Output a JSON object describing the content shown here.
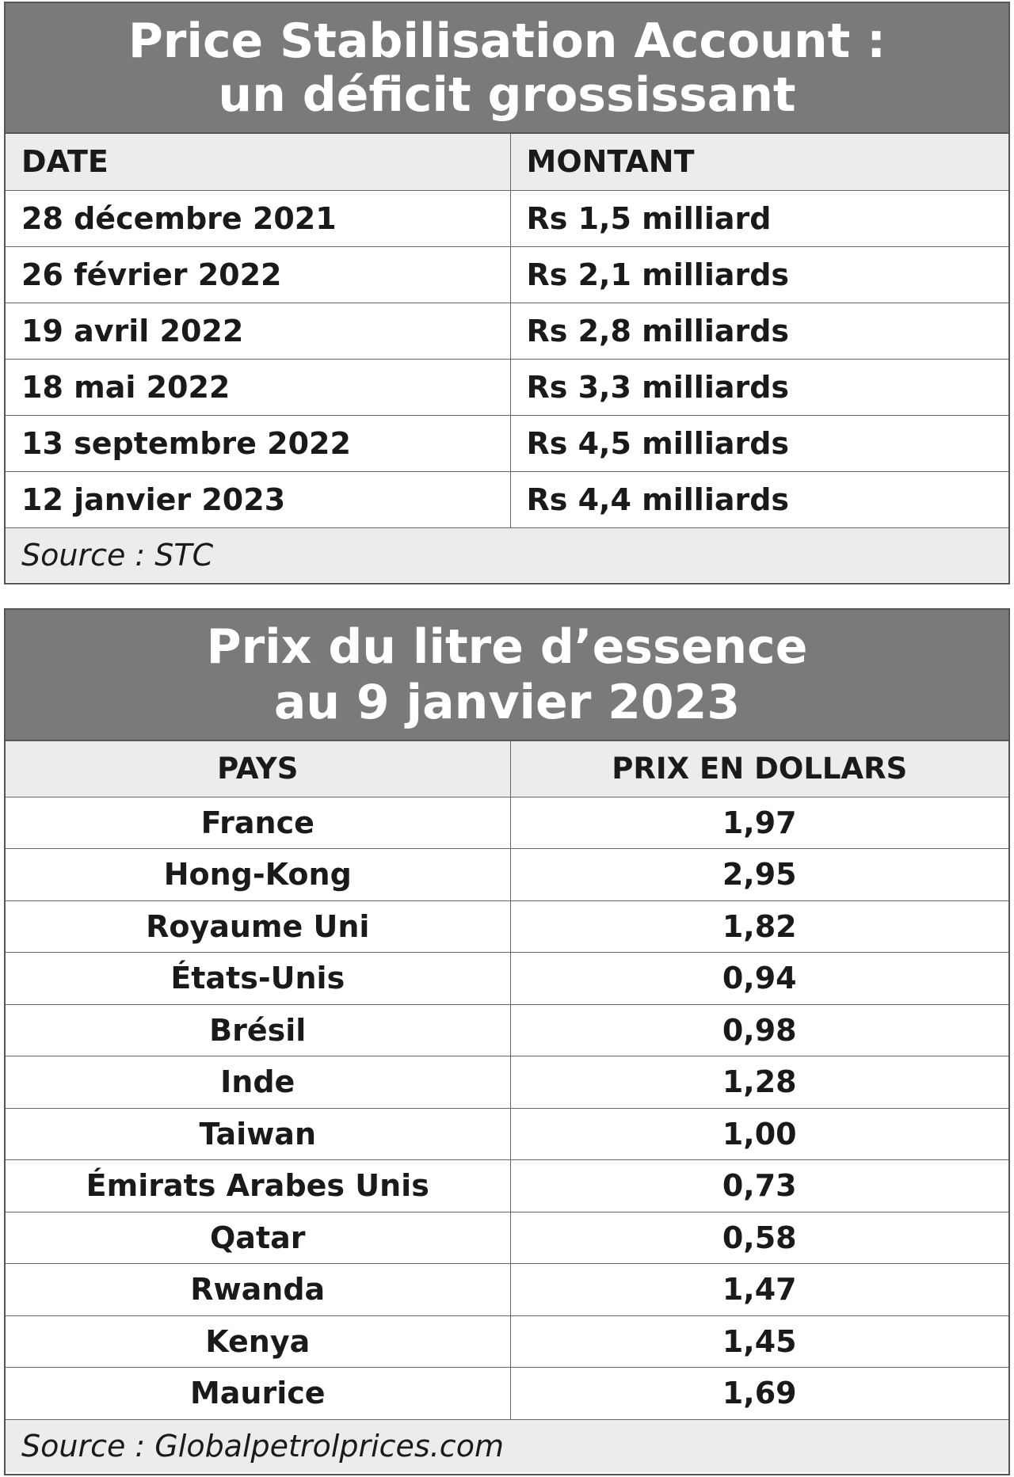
{
  "table1": {
    "title_line1": "Price Stabilisation Account :",
    "title_line2": "un déficit grossissant",
    "headers": [
      "DATE",
      "MONTANT"
    ],
    "rows": [
      [
        "28 décembre 2021",
        "Rs 1,5 milliard"
      ],
      [
        "26 février 2022",
        "Rs 2,1 milliards"
      ],
      [
        "19 avril 2022",
        "Rs 2,8 milliards"
      ],
      [
        "18 mai 2022",
        "Rs 3,3 milliards"
      ],
      [
        "13 septembre 2022",
        "Rs 4,5 milliards"
      ],
      [
        "12 janvier 2023",
        "Rs 4,4 milliards"
      ]
    ],
    "source": "Source : STC"
  },
  "table2": {
    "title_line1": "Prix du litre d’essence",
    "title_line2": "au 9 janvier 2023",
    "headers": [
      "PAYS",
      "PRIX EN DOLLARS"
    ],
    "rows": [
      [
        "France",
        "1,97"
      ],
      [
        "Hong-Kong",
        "2,95"
      ],
      [
        "Royaume Uni",
        "1,82"
      ],
      [
        "États-Unis",
        "0,94"
      ],
      [
        "Brésil",
        "0,98"
      ],
      [
        "Inde",
        "1,28"
      ],
      [
        "Taiwan",
        "1,00"
      ],
      [
        "Émirats Arabes Unis",
        "0,73"
      ],
      [
        "Qatar",
        "0,58"
      ],
      [
        "Rwanda",
        "1,47"
      ],
      [
        "Kenya",
        "1,45"
      ],
      [
        "Maurice",
        "1,69"
      ]
    ],
    "source": "Source : Globalpetrolprices.com"
  }
}
